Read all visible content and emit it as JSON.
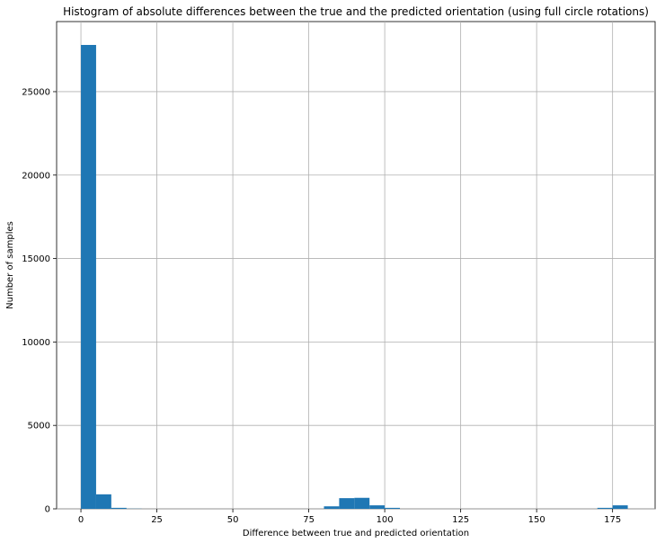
{
  "chart_data": {
    "type": "bar",
    "title": "Histogram of absolute differences between the true and the predicted orientation (using full circle rotations)",
    "xlabel": "Difference between true and predicted orientation",
    "ylabel": "Number of samples",
    "xlim": [
      -8,
      189
    ],
    "ylim": [
      0,
      29200
    ],
    "xticks": [
      0,
      25,
      50,
      75,
      100,
      125,
      150,
      175
    ],
    "yticks": [
      0,
      5000,
      10000,
      15000,
      20000,
      25000
    ],
    "grid": true,
    "bar_color": "#1f77b4",
    "bins": [
      {
        "x0": 0,
        "x1": 5,
        "value": 27800
      },
      {
        "x0": 5,
        "x1": 10,
        "value": 870
      },
      {
        "x0": 10,
        "x1": 15,
        "value": 60
      },
      {
        "x0": 15,
        "x1": 20,
        "value": 10
      },
      {
        "x0": 80,
        "x1": 85,
        "value": 150
      },
      {
        "x0": 85,
        "x1": 90,
        "value": 640
      },
      {
        "x0": 90,
        "x1": 95,
        "value": 660
      },
      {
        "x0": 95,
        "x1": 100,
        "value": 210
      },
      {
        "x0": 100,
        "x1": 105,
        "value": 60
      },
      {
        "x0": 170,
        "x1": 175,
        "value": 60
      },
      {
        "x0": 175,
        "x1": 180,
        "value": 210
      }
    ]
  }
}
